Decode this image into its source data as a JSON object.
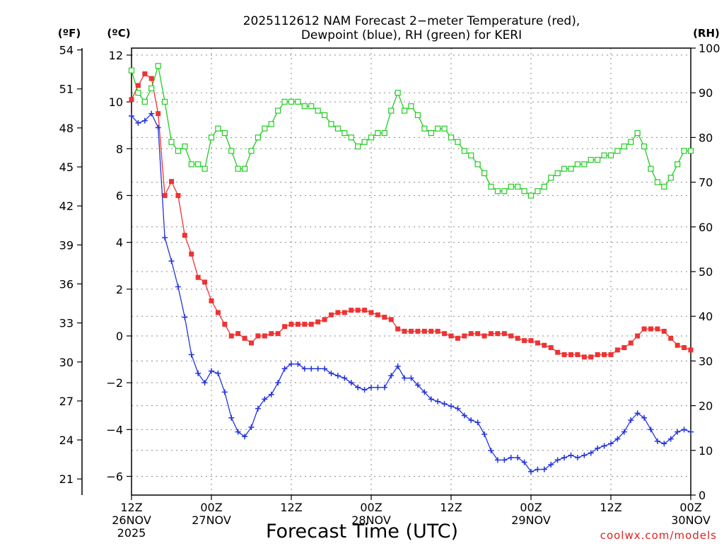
{
  "title": {
    "line1": "2025112612 NAM Forecast 2−meter Temperature (red),",
    "line2": "Dewpoint (blue), RH (green) for KERI"
  },
  "axis_units": {
    "fahrenheit": "(ºF)",
    "celsius": "(ºC)",
    "rh": "(RH)"
  },
  "xlabel": "Forecast Time (UTC)",
  "watermark": "coolwx.com/models",
  "colors": {
    "temperature": "#ee3333",
    "dewpoint": "#2233dd",
    "rh": "#22cc22",
    "grid": "#888888",
    "watermark": "#dd2222"
  },
  "chart_data": {
    "type": "line",
    "title": "2025112612 NAM Forecast 2-meter Temperature (red), Dewpoint (blue), RH (green) for KERI",
    "xlabel": "Forecast Time (UTC)",
    "x_unit": "forecast hour (0 = 12Z 26 Nov 2025)",
    "xlim": [
      0,
      84
    ],
    "x_ticks": [
      {
        "hour": 0,
        "labels": [
          "12Z",
          "26NOV",
          "2025"
        ]
      },
      {
        "hour": 12,
        "labels": [
          "00Z",
          "27NOV"
        ]
      },
      {
        "hour": 24,
        "labels": [
          "12Z"
        ]
      },
      {
        "hour": 36,
        "labels": [
          "00Z",
          "28NOV"
        ]
      },
      {
        "hour": 48,
        "labels": [
          "12Z"
        ]
      },
      {
        "hour": 60,
        "labels": [
          "00Z",
          "29NOV"
        ]
      },
      {
        "hour": 72,
        "labels": [
          "12Z"
        ]
      },
      {
        "hour": 84,
        "labels": [
          "00Z",
          "30NOV"
        ]
      }
    ],
    "y_left_celsius": {
      "label": "(ºC)",
      "ylim": [
        -6.8,
        12.3
      ],
      "ticks": [
        "12",
        "10",
        "8",
        "6",
        "4",
        "2",
        "0",
        "−2",
        "−4",
        "−6"
      ]
    },
    "y_left_fahrenheit": {
      "label": "(ºF)",
      "ticks": [
        "54",
        "51",
        "48",
        "45",
        "42",
        "39",
        "36",
        "33",
        "30",
        "27",
        "24",
        "21"
      ]
    },
    "y_right_rh": {
      "label": "(RH)",
      "ylim": [
        0,
        100
      ],
      "ticks": [
        "100",
        "90",
        "80",
        "70",
        "60",
        "50",
        "40",
        "30",
        "20",
        "10",
        "0"
      ]
    },
    "x": [
      0,
      1,
      2,
      3,
      4,
      5,
      6,
      7,
      8,
      9,
      10,
      11,
      12,
      13,
      14,
      15,
      16,
      17,
      18,
      19,
      20,
      21,
      22,
      23,
      24,
      25,
      26,
      27,
      28,
      29,
      30,
      31,
      32,
      33,
      34,
      35,
      36,
      37,
      38,
      39,
      40,
      41,
      42,
      43,
      44,
      45,
      46,
      47,
      48,
      49,
      50,
      51,
      52,
      53,
      54,
      55,
      56,
      57,
      58,
      59,
      60,
      61,
      62,
      63,
      64,
      65,
      66,
      67,
      68,
      69,
      70,
      71,
      72,
      73,
      74,
      75,
      76,
      77,
      78,
      79,
      80,
      81,
      82,
      83,
      84
    ],
    "series": [
      {
        "name": "Temperature",
        "unit": "°C",
        "axis": "celsius",
        "marker": "filled-square",
        "values": [
          10.1,
          10.7,
          11.2,
          11.0,
          9.5,
          6.0,
          6.6,
          6.0,
          4.3,
          3.5,
          2.5,
          2.3,
          1.5,
          1.0,
          0.5,
          0.0,
          0.1,
          -0.1,
          -0.3,
          0.0,
          0.0,
          0.1,
          0.1,
          0.4,
          0.5,
          0.5,
          0.5,
          0.5,
          0.6,
          0.7,
          0.9,
          1.0,
          1.0,
          1.1,
          1.1,
          1.1,
          1.0,
          0.9,
          0.8,
          0.7,
          0.3,
          0.2,
          0.2,
          0.2,
          0.2,
          0.2,
          0.2,
          0.1,
          0.0,
          -0.1,
          0.0,
          0.1,
          0.1,
          0.0,
          0.1,
          0.1,
          0.1,
          0.0,
          -0.1,
          -0.2,
          -0.2,
          -0.3,
          -0.4,
          -0.5,
          -0.7,
          -0.8,
          -0.8,
          -0.8,
          -0.9,
          -0.9,
          -0.8,
          -0.8,
          -0.8,
          -0.6,
          -0.5,
          -0.3,
          0.0,
          0.3,
          0.3,
          0.3,
          0.2,
          -0.1,
          -0.4,
          -0.5,
          -0.6
        ]
      },
      {
        "name": "Dewpoint",
        "unit": "°C",
        "axis": "celsius",
        "marker": "plus",
        "values": [
          9.4,
          9.1,
          9.2,
          9.5,
          8.9,
          4.2,
          3.2,
          2.1,
          0.8,
          -0.8,
          -1.6,
          -2.0,
          -1.5,
          -1.6,
          -2.4,
          -3.5,
          -4.1,
          -4.3,
          -3.9,
          -3.1,
          -2.7,
          -2.5,
          -2.0,
          -1.4,
          -1.2,
          -1.2,
          -1.4,
          -1.4,
          -1.4,
          -1.4,
          -1.6,
          -1.7,
          -1.8,
          -2.0,
          -2.2,
          -2.3,
          -2.2,
          -2.2,
          -2.2,
          -1.7,
          -1.3,
          -1.8,
          -1.8,
          -2.1,
          -2.4,
          -2.7,
          -2.8,
          -2.9,
          -3.0,
          -3.1,
          -3.4,
          -3.6,
          -3.7,
          -4.2,
          -4.9,
          -5.3,
          -5.3,
          -5.2,
          -5.2,
          -5.4,
          -5.8,
          -5.7,
          -5.7,
          -5.5,
          -5.3,
          -5.2,
          -5.1,
          -5.2,
          -5.1,
          -5.0,
          -4.8,
          -4.7,
          -4.6,
          -4.4,
          -4.1,
          -3.6,
          -3.3,
          -3.5,
          -4.0,
          -4.5,
          -4.6,
          -4.4,
          -4.1,
          -4.0,
          -4.1
        ]
      },
      {
        "name": "RH",
        "unit": "%",
        "axis": "rh",
        "marker": "open-square",
        "values": [
          95,
          90,
          88,
          91,
          96,
          88,
          79,
          77,
          78,
          74,
          74,
          73,
          80,
          82,
          81,
          77,
          73,
          73,
          77,
          80,
          82,
          83,
          86,
          88,
          88,
          88,
          87,
          87,
          86,
          85,
          83,
          82,
          81,
          80,
          78,
          79,
          80,
          81,
          81,
          86,
          90,
          86,
          87,
          85,
          82,
          81,
          82,
          82,
          80,
          79,
          77,
          76,
          74,
          72,
          69,
          68,
          68,
          69,
          69,
          68,
          67,
          68,
          69,
          71,
          72,
          73,
          73,
          74,
          74,
          75,
          75,
          76,
          76,
          77,
          78,
          79,
          81,
          78,
          73,
          70,
          69,
          71,
          74,
          77,
          77
        ]
      }
    ],
    "legend": "none",
    "grid": true
  }
}
